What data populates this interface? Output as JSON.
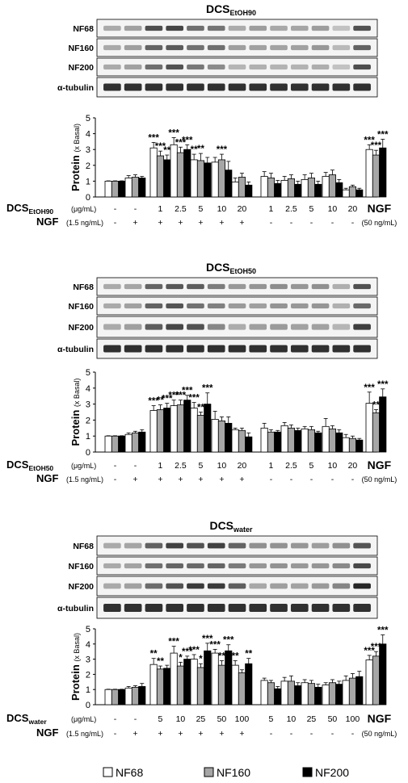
{
  "chart_data": [
    {
      "type": "bar",
      "panel_title": "DCS",
      "panel_title_sub": "EtOH90",
      "blot_rows": [
        "NF68",
        "NF160",
        "NF200",
        "α-tubulin"
      ],
      "ylabel": "Protein",
      "ylabel_unit": "(x Basal)",
      "ylim": [
        0,
        5
      ],
      "yticks": [
        "0",
        "1",
        "2",
        "3",
        "4",
        "5"
      ],
      "series_names": [
        "NF68",
        "NF160",
        "NF200"
      ],
      "values": [
        [
          1.0,
          1.0,
          1.0
        ],
        [
          1.2,
          1.25,
          1.2
        ],
        [
          3.1,
          2.6,
          2.35
        ],
        [
          3.3,
          2.8,
          3.0
        ],
        [
          2.35,
          2.3,
          2.15
        ],
        [
          2.2,
          2.35,
          1.7
        ],
        [
          0.95,
          1.25,
          0.75
        ],
        [
          1.3,
          1.2,
          0.85
        ],
        [
          1.05,
          1.15,
          0.8
        ],
        [
          1.1,
          1.2,
          0.8
        ],
        [
          1.3,
          1.4,
          0.9
        ],
        [
          0.45,
          0.65,
          0.45
        ],
        [
          3.0,
          2.65,
          3.1
        ]
      ],
      "errors": [
        [
          0.02,
          0.02,
          0.02
        ],
        [
          0.15,
          0.15,
          0.1
        ],
        [
          0.35,
          0.3,
          0.3
        ],
        [
          0.45,
          0.35,
          0.3
        ],
        [
          0.35,
          0.45,
          0.35
        ],
        [
          0.3,
          0.35,
          0.55
        ],
        [
          0.25,
          0.25,
          0.2
        ],
        [
          0.3,
          0.3,
          0.2
        ],
        [
          0.25,
          0.25,
          0.2
        ],
        [
          0.3,
          0.3,
          0.2
        ],
        [
          0.25,
          0.3,
          0.2
        ],
        [
          0.1,
          0.1,
          0.1
        ],
        [
          0.3,
          0.3,
          0.55
        ]
      ],
      "sig": [
        [
          "",
          "",
          ""
        ],
        [
          "",
          "",
          ""
        ],
        [
          "***",
          "***",
          "**"
        ],
        [
          "***",
          "***",
          "***"
        ],
        [
          "**",
          "**",
          ""
        ],
        [
          "",
          "***",
          ""
        ],
        [
          "",
          "",
          ""
        ],
        [
          "",
          "",
          ""
        ],
        [
          "",
          "",
          ""
        ],
        [
          "",
          "",
          ""
        ],
        [
          "",
          "",
          ""
        ],
        [
          "",
          "",
          ""
        ],
        [
          "***",
          "***",
          "***"
        ]
      ],
      "dcs_label": "DCS",
      "dcs_label_sub": "EtOH90",
      "dcs_unit": "(μg/mL)",
      "dcs_values": [
        "-",
        "-",
        "1",
        "2.5",
        "5",
        "10",
        "20",
        "1",
        "2.5",
        "5",
        "10",
        "20",
        "NGF"
      ],
      "ngf_label": "NGF",
      "ngf_unit": "(1.5 ng/mL)",
      "ngf_values": [
        "-",
        "+",
        "+",
        "+",
        "+",
        "+",
        "+",
        "-",
        "-",
        "-",
        "-",
        "-",
        "(50 ng/mL)"
      ]
    },
    {
      "type": "bar",
      "panel_title": "DCS",
      "panel_title_sub": "EtOH50",
      "blot_rows": [
        "NF68",
        "NF160",
        "NF200",
        "α-tubulin"
      ],
      "ylabel": "Protein",
      "ylabel_unit": "(x Basal)",
      "ylim": [
        0,
        5
      ],
      "yticks": [
        "0",
        "1",
        "2",
        "3",
        "4",
        "5"
      ],
      "series_names": [
        "NF68",
        "NF160",
        "NF200"
      ],
      "values": [
        [
          1.0,
          1.0,
          1.0
        ],
        [
          1.1,
          1.2,
          1.25
        ],
        [
          2.6,
          2.65,
          2.75
        ],
        [
          2.9,
          2.95,
          3.25
        ],
        [
          2.75,
          2.3,
          3.0
        ],
        [
          2.05,
          1.95,
          1.8
        ],
        [
          1.4,
          1.35,
          0.95
        ],
        [
          1.5,
          1.25,
          1.25
        ],
        [
          1.65,
          1.5,
          1.35
        ],
        [
          1.45,
          1.4,
          1.2
        ],
        [
          1.6,
          1.45,
          1.2
        ],
        [
          0.9,
          0.85,
          0.75
        ],
        [
          3.05,
          2.45,
          3.45
        ]
      ],
      "errors": [
        [
          0.02,
          0.02,
          0.02
        ],
        [
          0.1,
          0.1,
          0.15
        ],
        [
          0.3,
          0.3,
          0.3
        ],
        [
          0.35,
          0.3,
          0.3
        ],
        [
          0.35,
          0.2,
          0.7
        ],
        [
          0.5,
          0.25,
          0.4
        ],
        [
          0.1,
          0.15,
          0.25
        ],
        [
          0.3,
          0.15,
          0.1
        ],
        [
          0.2,
          0.2,
          0.15
        ],
        [
          0.15,
          0.2,
          0.1
        ],
        [
          0.5,
          0.2,
          0.2
        ],
        [
          0.2,
          0.15,
          0.1
        ],
        [
          0.7,
          0.2,
          0.5
        ]
      ],
      "sig": [
        [
          "",
          "",
          ""
        ],
        [
          "",
          "",
          ""
        ],
        [
          "***",
          "**",
          "***"
        ],
        [
          "***",
          "***",
          "***"
        ],
        [
          "***",
          "**",
          "***"
        ],
        [
          "",
          "",
          ""
        ],
        [
          "",
          "",
          ""
        ],
        [
          "",
          "",
          ""
        ],
        [
          "",
          "",
          ""
        ],
        [
          "",
          "",
          ""
        ],
        [
          "",
          "",
          ""
        ],
        [
          "",
          "",
          ""
        ],
        [
          "***",
          "**",
          "***"
        ]
      ],
      "dcs_label": "DCS",
      "dcs_label_sub": "EtOH50",
      "dcs_unit": "(μg/mL)",
      "dcs_values": [
        "-",
        "-",
        "1",
        "2.5",
        "5",
        "10",
        "20",
        "1",
        "2.5",
        "5",
        "10",
        "20",
        "NGF"
      ],
      "ngf_label": "NGF",
      "ngf_unit": "(1.5 ng/mL)",
      "ngf_values": [
        "-",
        "+",
        "+",
        "+",
        "+",
        "+",
        "+",
        "-",
        "-",
        "-",
        "-",
        "-",
        "(50 ng/mL)"
      ]
    },
    {
      "type": "bar",
      "panel_title": "DCS",
      "panel_title_sub": "water",
      "blot_rows": [
        "NF68",
        "NF160",
        "NF200",
        "α-tubulin"
      ],
      "ylabel": "Protein",
      "ylabel_unit": "(x Basal)",
      "ylim": [
        0,
        5
      ],
      "yticks": [
        "0",
        "1",
        "2",
        "3",
        "4",
        "5"
      ],
      "series_names": [
        "NF68",
        "NF160",
        "NF200"
      ],
      "values": [
        [
          1.0,
          1.0,
          1.0
        ],
        [
          1.1,
          1.15,
          1.2
        ],
        [
          2.65,
          2.35,
          2.4
        ],
        [
          3.4,
          2.55,
          3.0
        ],
        [
          3.0,
          2.45,
          3.55
        ],
        [
          3.4,
          2.6,
          3.55
        ],
        [
          2.6,
          2.1,
          2.7
        ],
        [
          1.6,
          1.45,
          1.05
        ],
        [
          1.55,
          1.55,
          1.25
        ],
        [
          1.45,
          1.4,
          1.15
        ],
        [
          1.3,
          1.45,
          1.35
        ],
        [
          1.6,
          1.75,
          1.85
        ],
        [
          2.95,
          3.2,
          4.0
        ]
      ],
      "errors": [
        [
          0.02,
          0.02,
          0.02
        ],
        [
          0.1,
          0.1,
          0.2
        ],
        [
          0.4,
          0.2,
          0.2
        ],
        [
          0.45,
          0.25,
          0.2
        ],
        [
          0.3,
          0.25,
          0.5
        ],
        [
          0.25,
          0.3,
          0.4
        ],
        [
          0.3,
          0.2,
          0.35
        ],
        [
          0.15,
          0.15,
          0.15
        ],
        [
          0.25,
          0.35,
          0.2
        ],
        [
          0.2,
          0.2,
          0.2
        ],
        [
          0.15,
          0.2,
          0.2
        ],
        [
          0.3,
          0.3,
          0.35
        ],
        [
          0.3,
          0.3,
          0.6
        ]
      ],
      "sig": [
        [
          "",
          "",
          ""
        ],
        [
          "",
          "",
          ""
        ],
        [
          "**",
          "**",
          ""
        ],
        [
          "***",
          "*",
          "***"
        ],
        [
          "***",
          "*",
          "***"
        ],
        [
          "***",
          "**",
          "***"
        ],
        [
          "**",
          "",
          "**"
        ],
        [
          "",
          "",
          ""
        ],
        [
          "",
          "",
          ""
        ],
        [
          "",
          "",
          ""
        ],
        [
          "",
          "",
          ""
        ],
        [
          "",
          "",
          ""
        ],
        [
          "***",
          "***",
          "***"
        ]
      ],
      "dcs_label": "DCS",
      "dcs_label_sub": "water",
      "dcs_unit": "(μg/mL)",
      "dcs_values": [
        "-",
        "-",
        "5",
        "10",
        "25",
        "50",
        "100",
        "5",
        "10",
        "25",
        "50",
        "100",
        "NGF"
      ],
      "ngf_label": "NGF",
      "ngf_unit": "(1.5 ng/mL)",
      "ngf_values": [
        "-",
        "+",
        "+",
        "+",
        "+",
        "+",
        "+",
        "-",
        "-",
        "-",
        "-",
        "-",
        "(50 ng/mL)"
      ]
    }
  ],
  "legend": [
    {
      "name": "NF68",
      "color": "#ffffff"
    },
    {
      "name": "NF160",
      "color": "#a6a6a6"
    },
    {
      "name": "NF200",
      "color": "#000000"
    }
  ]
}
